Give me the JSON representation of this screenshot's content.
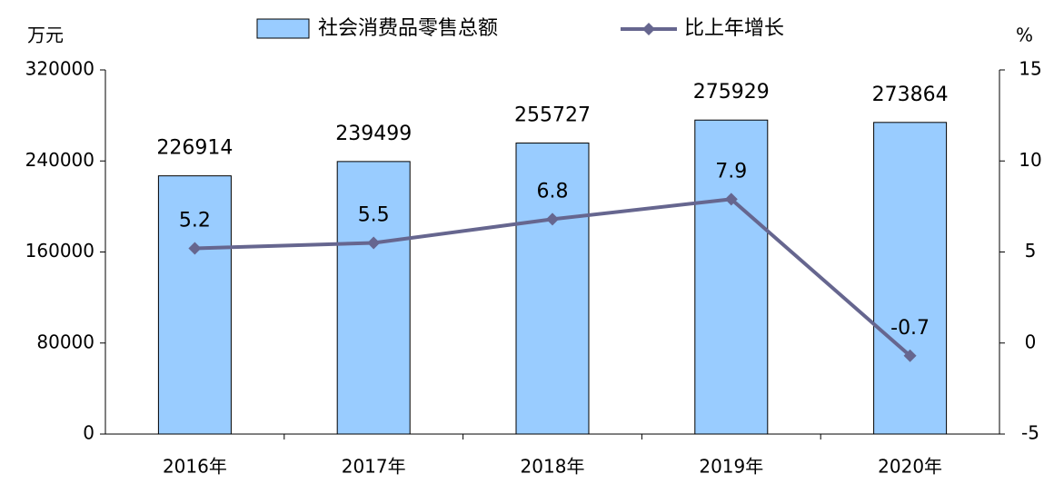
{
  "chart_data": {
    "type": "bar",
    "y_unit": "万元",
    "y2_unit": "%",
    "categories": [
      "2016年",
      "2017年",
      "2018年",
      "2019年",
      "2020年"
    ],
    "series": [
      {
        "name": "社会消费品零售总额",
        "type": "bar",
        "color": "#99ccff",
        "values": [
          226914,
          239499,
          255727,
          275929,
          273864
        ]
      },
      {
        "name": "比上年增长",
        "type": "line",
        "axis": "y2",
        "color": "#66668f",
        "values": [
          5.2,
          5.5,
          6.8,
          7.9,
          -0.7
        ]
      }
    ],
    "ylim": [
      0,
      320000
    ],
    "yticks": [
      0,
      80000,
      160000,
      240000,
      320000
    ],
    "y2lim": [
      -5,
      15
    ],
    "y2ticks": [
      -5,
      0,
      5,
      10,
      15
    ]
  }
}
